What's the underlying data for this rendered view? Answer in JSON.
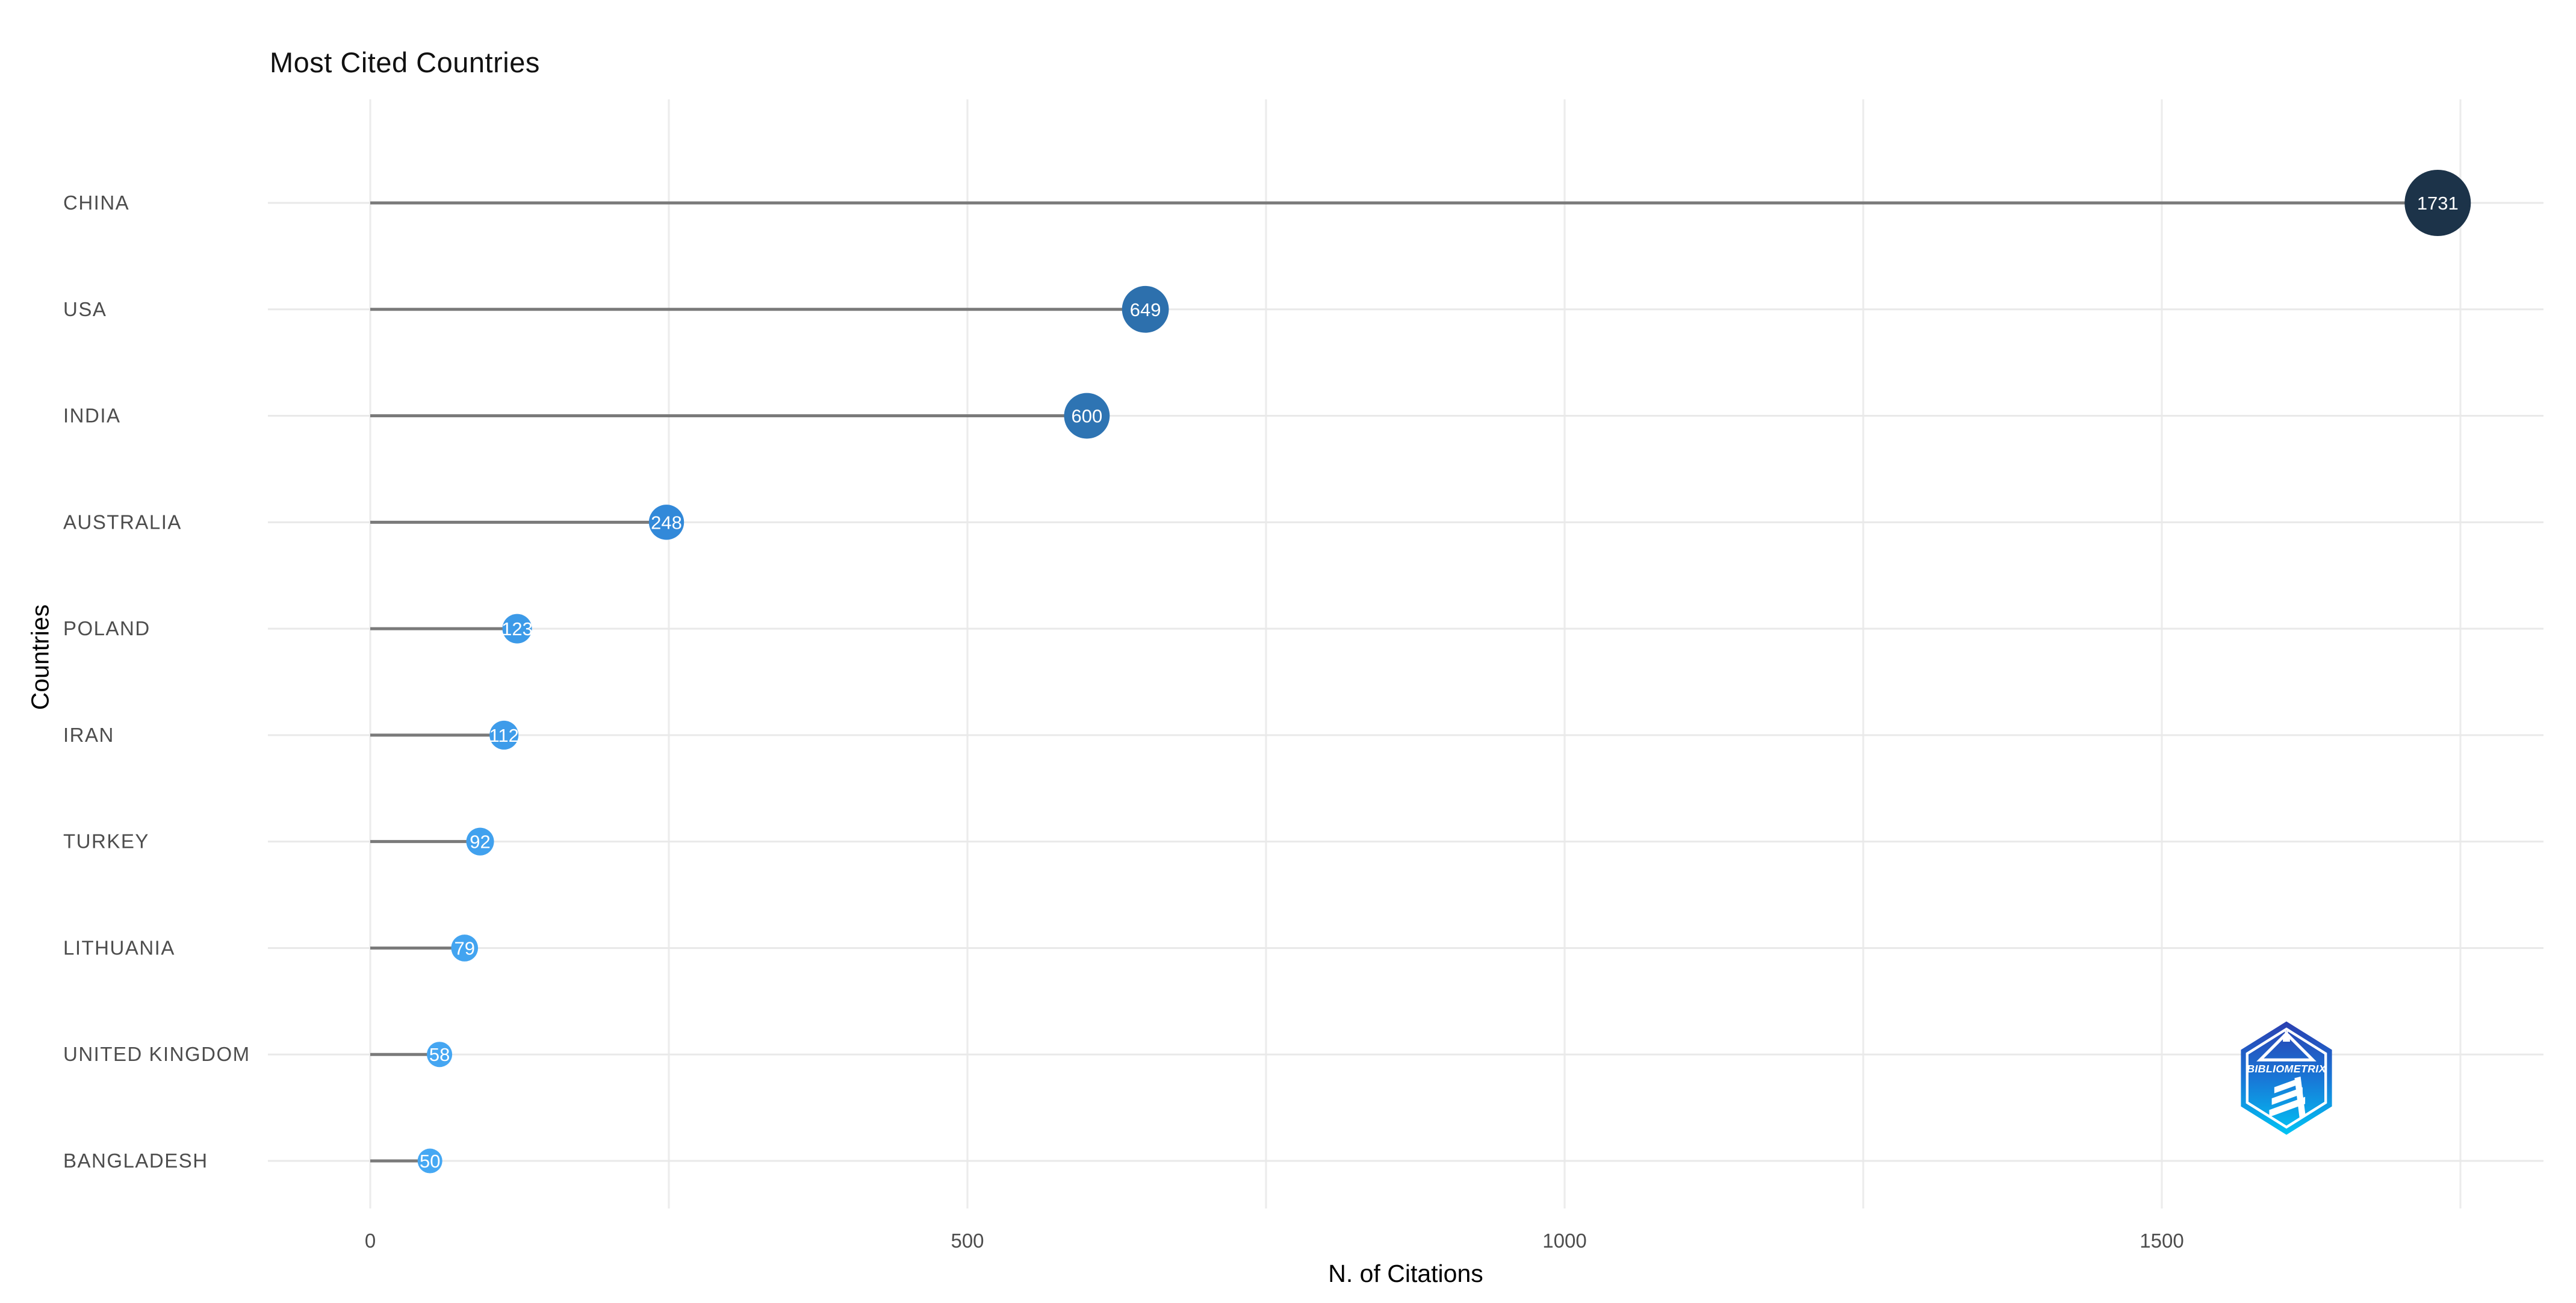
{
  "chart_data": {
    "type": "lollipop",
    "title": "Most Cited Countries",
    "xlabel": "N. of Citations",
    "ylabel": "Countries",
    "categories": [
      "CHINA",
      "USA",
      "INDIA",
      "AUSTRALIA",
      "POLAND",
      "IRAN",
      "TURKEY",
      "LITHUANIA",
      "UNITED KINGDOM",
      "BANGLADESH"
    ],
    "values": [
      1731,
      649,
      600,
      248,
      123,
      112,
      92,
      79,
      58,
      50
    ],
    "point_colors": [
      "#1C3349",
      "#2D70AD",
      "#2E74B3",
      "#3289D9",
      "#3C9AE8",
      "#3E9CEA",
      "#41A1EE",
      "#43A4F0",
      "#45A6F2",
      "#46A8F3"
    ],
    "x_ticks": [
      0,
      500,
      1000,
      1500
    ],
    "x_minor_step": 250,
    "xlim": [
      -87,
      1818
    ],
    "grid": true,
    "legend_position": "none",
    "value_labels": "inside-point"
  },
  "style": {
    "background": "#FFFFFF",
    "grid_color_v": "#ECECEC",
    "grid_color_h": "#E9E9E9",
    "stem_color": "#7A7A7A",
    "tick_label_color": "#4D4D4D",
    "category_label_color": "#4D4D4D",
    "title_color": "#111111",
    "axis_title_color": "#000000",
    "point_label_color": "#FFFFFF"
  },
  "logo": {
    "text": "BIBLIOMETRIX",
    "gradient_top": "#2B3FB0",
    "gradient_mid": "#1976D6",
    "gradient_bottom": "#00C4F4"
  }
}
